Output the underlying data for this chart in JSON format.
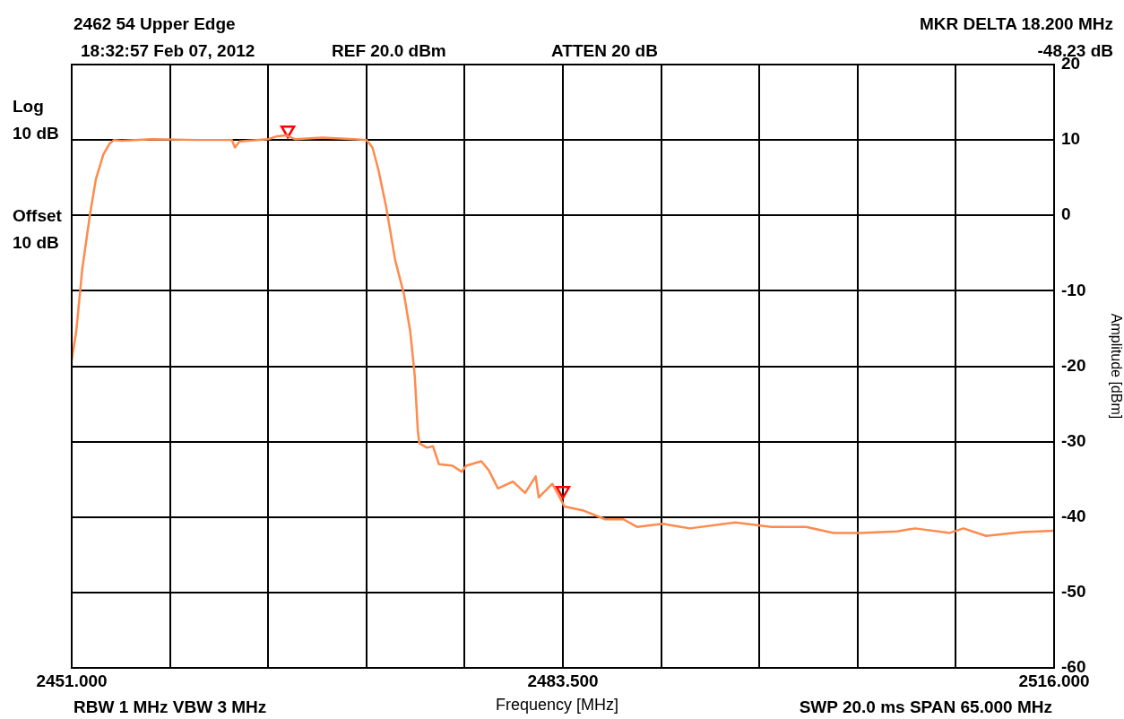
{
  "chart_data": {
    "type": "line",
    "title": "2462 54 Upper Edge",
    "subtitle": "18:32:57 Feb 07, 2012",
    "xlabel": "Frequency [MHz]",
    "ylabel": "Amplitude [dBm]",
    "annotations": [
      "REF 20.0 dBm",
      "ATTEN 20 dB",
      "MKR DELTA 18.200 MHz",
      "-48.23 dB",
      "Log",
      "10 dB",
      "Offset",
      "10 dB",
      "RBW 1 MHz  VBW 3 MHz",
      "SWP 20.0 ms  SPAN 65.000 MHz"
    ],
    "xlim": [
      2451,
      2516
    ],
    "ylim": [
      -60,
      20
    ],
    "xticks": [
      {
        "value": 2451,
        "label": "2451.000"
      },
      {
        "value": 2457.5,
        "label": null
      },
      {
        "value": 2464,
        "label": null
      },
      {
        "value": 2470.5,
        "label": null
      },
      {
        "value": 2477,
        "label": null
      },
      {
        "value": 2483.5,
        "label": "2483.500"
      },
      {
        "value": 2490,
        "label": null
      },
      {
        "value": 2496.5,
        "label": null
      },
      {
        "value": 2503,
        "label": null
      },
      {
        "value": 2509.5,
        "label": null
      },
      {
        "value": 2516,
        "label": "2516.000"
      }
    ],
    "yticks": [
      -60,
      -50,
      -40,
      -30,
      -20,
      -10,
      0,
      10,
      20
    ],
    "grid": true,
    "legend": false,
    "marker": "none",
    "line_style": "solid",
    "series": [
      {
        "color": "#ff8a4c",
        "x": [
          2451,
          2451.3,
          2451.7,
          2452.2,
          2452.6,
          2453.1,
          2453.5,
          2453.8,
          2454.3,
          2456.3,
          2459.3,
          2461.6,
          2461.8,
          2462.1,
          2464,
          2464.6,
          2465.2,
          2465.8,
          2467.6,
          2469.7,
          2470.5,
          2470.9,
          2471.3,
          2471.8,
          2472.4,
          2473,
          2473.4,
          2473.7,
          2473.9,
          2474,
          2474.5,
          2474.9,
          2475.3,
          2476.2,
          2476.8,
          2477.1,
          2478.1,
          2478.6,
          2479.2,
          2480.2,
          2481,
          2481.7,
          2481.9,
          2482.8,
          2483.3,
          2483.6,
          2484.8,
          2486.3,
          2487.5,
          2488.4,
          2490.1,
          2491.9,
          2494.9,
          2497.3,
          2499.6,
          2501.4,
          2503.2,
          2505.6,
          2506.8,
          2509.1,
          2510,
          2511.5,
          2513.9,
          2516
        ],
        "values": [
          -19.2,
          -15.4,
          -7.1,
          0,
          4.8,
          8.1,
          9.5,
          10,
          9.9,
          10.1,
          10,
          10,
          9,
          9.8,
          10.1,
          10.5,
          10.6,
          10.1,
          10.3,
          10.1,
          10,
          9,
          6,
          1.2,
          -5.9,
          -10.6,
          -15.4,
          -21.3,
          -28.5,
          -30.2,
          -30.8,
          -30.6,
          -33,
          -33.2,
          -34,
          -33.2,
          -32.6,
          -33.8,
          -36.2,
          -35.3,
          -36.8,
          -34.6,
          -37.4,
          -35.6,
          -37.4,
          -38.6,
          -39.1,
          -40.3,
          -40.3,
          -41.3,
          -40.9,
          -41.5,
          -40.7,
          -41.3,
          -41.3,
          -42.1,
          -42.1,
          -41.9,
          -41.5,
          -42.1,
          -41.5,
          -42.5,
          -42,
          -41.8
        ]
      },
      {
        "type": "scatter",
        "color": "#ff0000",
        "marker": "triangle",
        "x": [
          2465.3,
          2483.5
        ],
        "values": [
          11.3,
          -36.5
        ]
      }
    ]
  }
}
